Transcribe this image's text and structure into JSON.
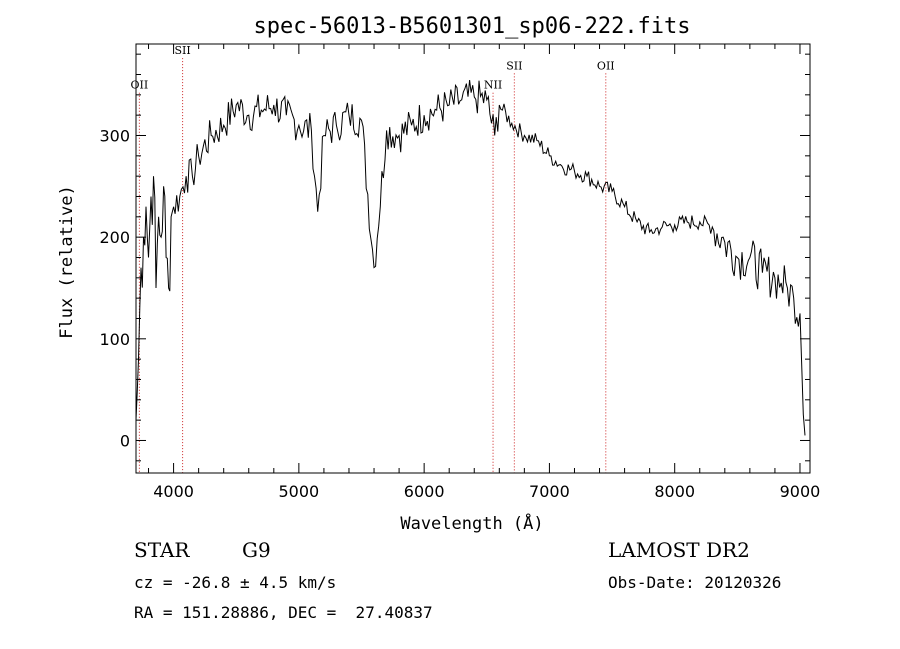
{
  "chart_data": {
    "type": "line",
    "title": "spec-56013-B5601301_sp06-222.fits",
    "xlabel": "Wavelength (Å)",
    "ylabel": "Flux (relative)",
    "xlim": [
      3700,
      9080
    ],
    "ylim": [
      -32,
      390
    ],
    "xticks": [
      4000,
      5000,
      6000,
      7000,
      8000,
      9000
    ],
    "yticks": [
      0,
      100,
      200,
      300
    ],
    "grid": false,
    "line_color": "#000000",
    "marker_color": "#cc2222",
    "series": [
      {
        "x": [
          3700,
          3720,
          3740,
          3760,
          3780,
          3800,
          3820,
          3840,
          3860,
          3880,
          3900,
          3920,
          3940,
          3960,
          3980,
          4000,
          4050,
          4100,
          4150,
          4200,
          4300,
          4400,
          4500,
          4600,
          4700,
          4800,
          4900,
          5000,
          5100,
          5150,
          5200,
          5300,
          5400,
          5500,
          5600,
          5700,
          5800,
          5900,
          6000,
          6100,
          6200,
          6300,
          6400,
          6500,
          6563,
          6600,
          6700,
          6800,
          6900,
          7000,
          7100,
          7200,
          7300,
          7400,
          7500,
          7600,
          7700,
          7800,
          7900,
          8000,
          8100,
          8200,
          8300,
          8400,
          8500,
          8600,
          8700,
          8800,
          8850,
          8900,
          8950,
          9000,
          9040
        ],
        "y": [
          20,
          80,
          170,
          200,
          230,
          180,
          240,
          260,
          150,
          220,
          200,
          250,
          180,
          150,
          220,
          230,
          240,
          260,
          260,
          280,
          300,
          310,
          330,
          320,
          325,
          330,
          320,
          310,
          305,
          225,
          300,
          310,
          320,
          315,
          170,
          305,
          300,
          310,
          320,
          325,
          330,
          335,
          338,
          335,
          300,
          330,
          312,
          300,
          295,
          280,
          270,
          265,
          260,
          250,
          245,
          230,
          215,
          205,
          210,
          212,
          215,
          215,
          210,
          195,
          180,
          180,
          165,
          160,
          155,
          150,
          140,
          125,
          5
        ]
      }
    ],
    "annotations": [
      {
        "label": "OII",
        "x": 3727,
        "label_y": 346
      },
      {
        "label": "SII",
        "x": 4072,
        "label_y": 380
      },
      {
        "label": "NII",
        "x": 6550,
        "label_y": 346
      },
      {
        "label": "SII",
        "x": 6720,
        "label_y": 365
      },
      {
        "label": "OII",
        "x": 7450,
        "label_y": 365
      }
    ]
  },
  "info": {
    "class": "STAR",
    "subclass": "G9",
    "release": "LAMOST DR2",
    "redshift": "cz = -26.8 ± 4.5 km/s",
    "obsdate": "Obs-Date: 20120326",
    "coords": "RA = 151.28886, DEC =  27.40837"
  }
}
